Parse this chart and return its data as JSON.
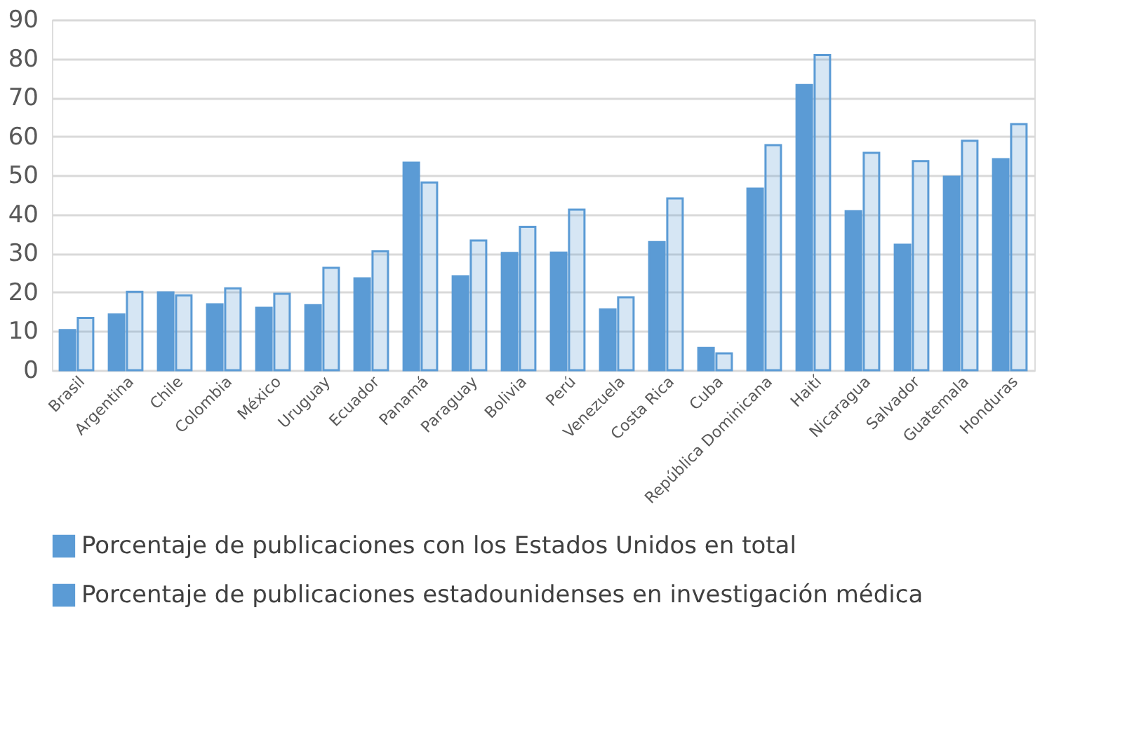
{
  "chart_data": {
    "type": "bar",
    "categories": [
      "Brasil",
      "Argentina",
      "Chile",
      "Colombia",
      "México",
      "Uruguay",
      "Ecuador",
      "Panamá",
      "Paraguay",
      "Bolivia",
      "Perú",
      "Venezuela",
      "Costa Rica",
      "Cuba",
      "República Dominicana",
      "Haití",
      "Nicaragua",
      "Salvador",
      "Guatemala",
      "Honduras"
    ],
    "series": [
      {
        "name": "Porcentaje de publicaciones con los Estados Unidos en total",
        "color": "#5b9bd5",
        "values": [
          10.3,
          14.3,
          20,
          16.9,
          16,
          16.7,
          23.6,
          53.3,
          24.1,
          30.1,
          30.2,
          15.6,
          32.9,
          5.7,
          46.6,
          73.2,
          40.8,
          32.2,
          49.7,
          54.2
        ]
      },
      {
        "name": "Porcentaje de publicaciones estadounidenses en investigación médica",
        "color": "#5b9bd5",
        "values": [
          13.4,
          20.1,
          19.2,
          21,
          19.6,
          26.3,
          30.5,
          48.2,
          33.3,
          36.8,
          41.2,
          18.7,
          44.1,
          4.3,
          57.8,
          80.9,
          55.8,
          53.7,
          58.9,
          63.2
        ]
      }
    ],
    "ylim": [
      0,
      90
    ],
    "yticks": [
      0,
      10,
      20,
      30,
      40,
      50,
      60,
      70,
      80,
      90
    ],
    "grid": "y",
    "legend": "bottom"
  }
}
